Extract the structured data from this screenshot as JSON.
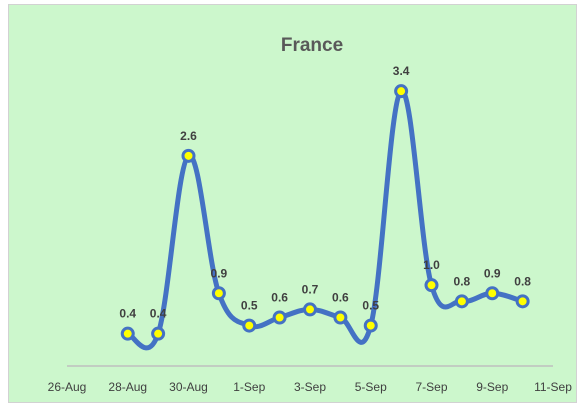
{
  "chart_data": {
    "type": "line",
    "smooth": true,
    "title": "France",
    "xlabel": "",
    "ylabel": "",
    "x_tick_labels": [
      "26-Aug",
      "28-Aug",
      "30-Aug",
      "1-Sep",
      "3-Sep",
      "5-Sep",
      "7-Sep",
      "9-Sep",
      "11-Sep"
    ],
    "x_range": [
      "2020-08-26",
      "2020-09-11"
    ],
    "ylim": [
      0,
      3.6
    ],
    "grid": false,
    "legend": "none",
    "series": [
      {
        "x": [
          "2020-08-28",
          "2020-08-29",
          "2020-08-30",
          "2020-08-31",
          "2020-09-01",
          "2020-09-02",
          "2020-09-03",
          "2020-09-04",
          "2020-09-05",
          "2020-09-06",
          "2020-09-07",
          "2020-09-08",
          "2020-09-09",
          "2020-09-10"
        ],
        "values": [
          0.4,
          0.4,
          2.6,
          0.9,
          0.5,
          0.6,
          0.7,
          0.6,
          0.5,
          3.4,
          1.0,
          0.8,
          0.9,
          0.8
        ],
        "labels": [
          "0.4",
          "0.4",
          "2.6",
          "0.9",
          "0.5",
          "0.6",
          "0.7",
          "0.6",
          "0.5",
          "3.4",
          "1.0",
          "0.8",
          "0.9",
          "0.8"
        ]
      }
    ]
  },
  "colors": {
    "background": "#ccf7cc",
    "line": "#4472c4",
    "marker_fill": "#ffff00",
    "axis": "#bfbfbf"
  }
}
